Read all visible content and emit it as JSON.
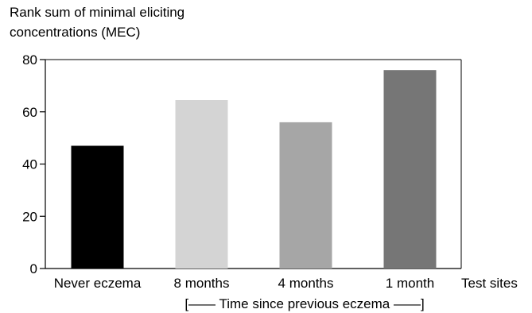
{
  "chart_data": {
    "type": "bar",
    "ylabel_lines": [
      "Rank sum of minimal eliciting",
      "concentrations (MEC)"
    ],
    "ylabel": "Rank sum of minimal eliciting concentrations (MEC)",
    "xlabel_right": "Test sites",
    "xlabel_bottom": "[—— Time since previous eczema ——]",
    "categories": [
      "Never eczema",
      "8 months",
      "4 months",
      "1 month"
    ],
    "values": [
      47,
      64.5,
      56,
      76
    ],
    "bar_colors": [
      "#000000",
      "#d4d4d4",
      "#a6a6a6",
      "#767676"
    ],
    "ylim": [
      0,
      80
    ],
    "yticks": [
      0,
      20,
      40,
      60,
      80
    ],
    "grid": false,
    "legend": "none"
  }
}
